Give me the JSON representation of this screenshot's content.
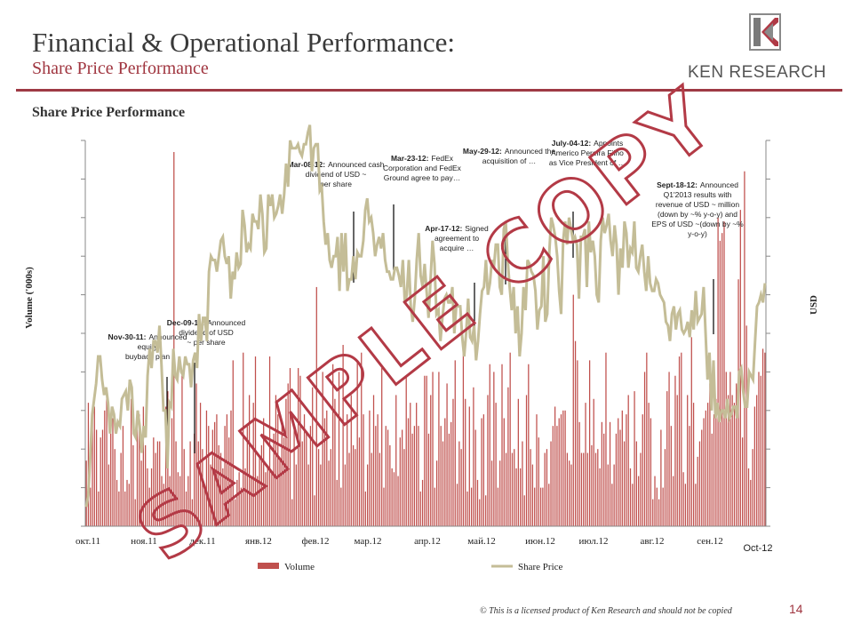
{
  "header": {
    "title": "Financial & Operational Performance:",
    "subtitle": "Share Price Performance"
  },
  "logo": {
    "text": "KEN RESEARCH",
    "icon": "ken-research-logo"
  },
  "chart_heading": "Share Price Performance",
  "footer": {
    "copyright": "© This is a licensed product of Ken Research and should not be copied",
    "page_number": "14"
  },
  "watermark": "SAMPLE COPY",
  "colors": {
    "accent": "#9e3a44",
    "volume_bar": "#c0504d",
    "share_price": "#c4bd97",
    "annotation_line": "#000000"
  },
  "chart_data": {
    "type": "bar",
    "title": "Share Price Performance",
    "ylabel_left": "Volume ('000s)",
    "ylabel_right": "USD",
    "x_ticks": [
      "окт.11",
      "ноя.11",
      "дек.11",
      "янв.12",
      "фев.12",
      "мар.12",
      "апр.12",
      "май.12",
      "июн.12",
      "июл.12",
      "авг.12",
      "сен.12",
      "Oct-12"
    ],
    "grid": false,
    "legend_position": "bottom",
    "series": [
      {
        "name": "Volume",
        "kind": "bar",
        "color": "#c0504d",
        "values": [
          17,
          32,
          10,
          30,
          31,
          25,
          9,
          23,
          25,
          30,
          35,
          16,
          24,
          28,
          20,
          12,
          9,
          19,
          26,
          9,
          12,
          11,
          33,
          21,
          7,
          28,
          29,
          17,
          31,
          21,
          15,
          10,
          15,
          23,
          19,
          22,
          22,
          13,
          11,
          31,
          35,
          13,
          28,
          97,
          22,
          14,
          13,
          40,
          20,
          9,
          13,
          22,
          7,
          24,
          37,
          22,
          32,
          20,
          10,
          30,
          26,
          16,
          25,
          27,
          29,
          21,
          19,
          15,
          26,
          29,
          23,
          30,
          43,
          7,
          12,
          14,
          10,
          45,
          15,
          26,
          34,
          13,
          32,
          44,
          13,
          18,
          21,
          28,
          14,
          15,
          44,
          14,
          24,
          34,
          29,
          17,
          26,
          23,
          33,
          37,
          41,
          7,
          26,
          16,
          41,
          39,
          22,
          29,
          24,
          16,
          26,
          36,
          8,
          62,
          20,
          16,
          40,
          28,
          30,
          17,
          20,
          42,
          33,
          12,
          40,
          10,
          47,
          16,
          29,
          19,
          34,
          21,
          20,
          43,
          23,
          45,
          29,
          9,
          16,
          30,
          19,
          34,
          26,
          29,
          19,
          41,
          10,
          26,
          25,
          21,
          15,
          14,
          34,
          13,
          23,
          25,
          20,
          39,
          28,
          32,
          24,
          26,
          32,
          26,
          9,
          12,
          39,
          39,
          24,
          34,
          40,
          10,
          17,
          40,
          26,
          22,
          28,
          37,
          24,
          27,
          33,
          43,
          11,
          22,
          20,
          46,
          33,
          9,
          31,
          10,
          36,
          25,
          12,
          7,
          28,
          29,
          8,
          34,
          42,
          17,
          40,
          32,
          10,
          17,
          42,
          28,
          19,
          36,
          45,
          19,
          20,
          15,
          33,
          15,
          22,
          8,
          34,
          42,
          20,
          16,
          10,
          29,
          23,
          10,
          10,
          19,
          20,
          11,
          22,
          26,
          31,
          26,
          28,
          29,
          30,
          30,
          19,
          17,
          16,
          60,
          48,
          43,
          27,
          19,
          19,
          32,
          19,
          43,
          21,
          33,
          19,
          20,
          15,
          27,
          24,
          45,
          16,
          27,
          11,
          16,
          24,
          28,
          25,
          30,
          22,
          29,
          34,
          15,
          11,
          35,
          22,
          13,
          19,
          29,
          40,
          45,
          32,
          28,
          7,
          13,
          10,
          7,
          25,
          10,
          20,
          35,
          40,
          26,
          13,
          39,
          34,
          44,
          45,
          14,
          11,
          34,
          26,
          49,
          32,
          11,
          18,
          22,
          25,
          28,
          30,
          32,
          37,
          24,
          29,
          33,
          80,
          74,
          76,
          79,
          40,
          34,
          40,
          34,
          32,
          37,
          64,
          82,
          23,
          92,
          52,
          15,
          12,
          20,
          31,
          34,
          40,
          39,
          46,
          45
        ]
      },
      {
        "name": "Share Price",
        "kind": "line",
        "color": "#c4bd97",
        "values": [
          5,
          8,
          18,
          29,
          33,
          37,
          44,
          44,
          38,
          34,
          36,
          32,
          24,
          31,
          29,
          24,
          27,
          26,
          33,
          34,
          35,
          30,
          38,
          36,
          24,
          23,
          30,
          26,
          19,
          26,
          23,
          39,
          46,
          41,
          48,
          48,
          45,
          52,
          42,
          30,
          30,
          15,
          32,
          31,
          46,
          39,
          38,
          44,
          40,
          39,
          44,
          42,
          42,
          36,
          43,
          45,
          41,
          55,
          48,
          54,
          54,
          48,
          66,
          70,
          69,
          69,
          66,
          70,
          74,
          75,
          70,
          68,
          70,
          59,
          66,
          64,
          71,
          67,
          68,
          82,
          78,
          71,
          73,
          72,
          81,
          79,
          79,
          77,
          86,
          81,
          71,
          72,
          86,
          83,
          86,
          80,
          81,
          83,
          86,
          81,
          86,
          94,
          88,
          100,
          98,
          98,
          98,
          99,
          97,
          96,
          99,
          99,
          102,
          104,
          92,
          98,
          99,
          99,
          87,
          88,
          79,
          73,
          76,
          69,
          67,
          70,
          70,
          75,
          61,
          76,
          66,
          76,
          61,
          64,
          64,
          70,
          64,
          71,
          70,
          70,
          74,
          82,
          85,
          79,
          80,
          76,
          70,
          73,
          75,
          72,
          76,
          69,
          66,
          66,
          64,
          64,
          67,
          67,
          65,
          62,
          69,
          58,
          60,
          69,
          57,
          53,
          59,
          69,
          76,
          65,
          62,
          68,
          61,
          54,
          64,
          74,
          68,
          55,
          56,
          48,
          54,
          59,
          60,
          58,
          58,
          62,
          50,
          57,
          57,
          57,
          49,
          44,
          50,
          59,
          49,
          48,
          52,
          43,
          48,
          55,
          61,
          62,
          69,
          60,
          63,
          69,
          67,
          73,
          73,
          62,
          60,
          77,
          79,
          69,
          62,
          56,
          62,
          50,
          57,
          44,
          50,
          62,
          56,
          69,
          68,
          66,
          65,
          61,
          51,
          56,
          57,
          70,
          53,
          55,
          71,
          80,
          78,
          75,
          70,
          61,
          55,
          74,
          79,
          73,
          80,
          77,
          74,
          75,
          73,
          59,
          75,
          75,
          77,
          62,
          79,
          71,
          74,
          70,
          60,
          58,
          74,
          80,
          76,
          78,
          81,
          74,
          70,
          78,
          73,
          60,
          72,
          67,
          79,
          76,
          67,
          72,
          71,
          79,
          67,
          66,
          70,
          73,
          66,
          61,
          70,
          63,
          61,
          61,
          64,
          63,
          60,
          59,
          58,
          53,
          52,
          48,
          55,
          57,
          51,
          55,
          56,
          51,
          50,
          51,
          53,
          49,
          56,
          51,
          61,
          53,
          54,
          55,
          62,
          50,
          38,
          45,
          30,
          43,
          28,
          32,
          27,
          30,
          30,
          28,
          33,
          28,
          29,
          31,
          31,
          28,
          40,
          41,
          35,
          31,
          31,
          40,
          39,
          38,
          48,
          57,
          58,
          60,
          58,
          63
        ]
      }
    ],
    "annotations": [
      {
        "date": "Nov-30-11:",
        "text": [
          "Announced",
          "equity",
          "buyback plan"
        ]
      },
      {
        "date": "Dec-09-11:",
        "text": [
          "Announced",
          "dividend of USD",
          "~ per share"
        ]
      },
      {
        "date": "Mar-08-12:",
        "text": [
          "Announced cash",
          "dividend of USD ~",
          "per share"
        ]
      },
      {
        "date": "Mar-23-12:",
        "text": [
          "FedEx",
          "Corporation and FedEx",
          "Ground agree to pay…"
        ]
      },
      {
        "date": "Apr-17-12:",
        "text": [
          "Signed",
          "agreement to",
          "acquire …"
        ]
      },
      {
        "date": "May-29-12:",
        "text": [
          "Announced the",
          "acquisition of …"
        ]
      },
      {
        "date": "July-04-12:",
        "text": [
          "Appoints",
          "Americo Pereira Filho",
          "as Vice President of …"
        ]
      },
      {
        "date": "Sept-18-12:",
        "text": [
          "Announced",
          "Q1'2013 results with",
          "revenue of USD ~ million",
          "(down by ~% y-o-y) and",
          "EPS of USD ~(down by ~%",
          "y-o-y)"
        ]
      }
    ]
  }
}
